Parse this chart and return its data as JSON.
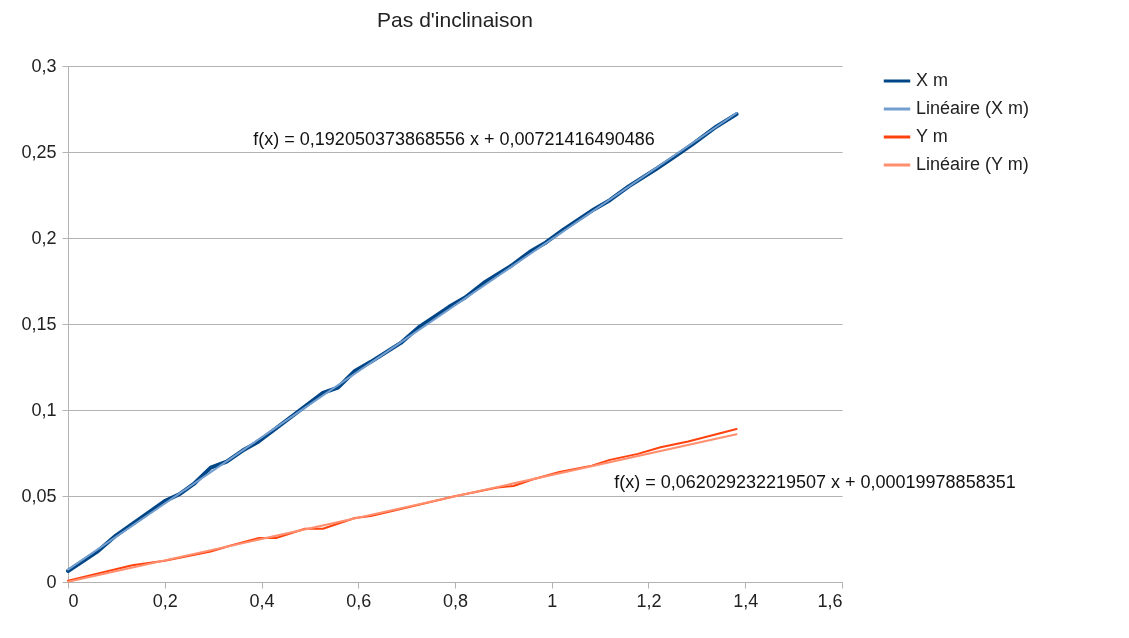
{
  "chart_data": {
    "type": "line",
    "title": "Pas d'inclinaison",
    "x": [
      0,
      0.062,
      0.099,
      0.2,
      0.23,
      0.26,
      0.295,
      0.328,
      0.361,
      0.394,
      0.527,
      0.558,
      0.593,
      0.626,
      0.688,
      0.727,
      0.788,
      0.821,
      0.86,
      0.917,
      0.955,
      0.988,
      1.025,
      1.087,
      1.12,
      1.159,
      1.215,
      1.254,
      1.292,
      1.34,
      1.382
    ],
    "series": [
      {
        "name": "X  m",
        "color": "#004586",
        "values": [
          0.0064,
          0.018,
          0.027,
          0.047,
          0.051,
          0.057,
          0.0665,
          0.07,
          0.0764,
          0.0817,
          0.11,
          0.113,
          0.1227,
          0.128,
          0.139,
          0.1485,
          0.16,
          0.1654,
          0.174,
          0.184,
          0.192,
          0.1974,
          0.205,
          0.2166,
          0.222,
          0.23,
          0.24,
          0.2473,
          0.2547,
          0.2647,
          0.272
        ]
      },
      {
        "name": "Linéaire (X  m)",
        "color": "#729fcf",
        "x": [
          0,
          1.382
        ],
        "values": [
          0.0072,
          0.2727
        ]
      },
      {
        "name": "Y m",
        "color": "#ff420e",
        "x": [
          0,
          0.133,
          0.2,
          0.295,
          0.333,
          0.395,
          0.43,
          0.49,
          0.527,
          0.593,
          0.626,
          0.797,
          0.888,
          0.921,
          0.96,
          1.016,
          1.083,
          1.12,
          1.178,
          1.225,
          1.282,
          1.382
        ],
        "values": [
          0.0008,
          0.0097,
          0.0123,
          0.0177,
          0.0209,
          0.0256,
          0.0256,
          0.031,
          0.031,
          0.0372,
          0.0383,
          0.0497,
          0.055,
          0.0558,
          0.0596,
          0.064,
          0.0676,
          0.071,
          0.0745,
          0.0783,
          0.0817,
          0.089
        ]
      },
      {
        "name": "Linéaire (Y m)",
        "color": "#ff8f6f",
        "x": [
          0,
          1.382
        ],
        "values": [
          0.0002,
          0.0859
        ]
      }
    ],
    "xlim": [
      0,
      1.6
    ],
    "xticks": [
      0,
      {
        "value": 0.2,
        "label": "0,2"
      },
      {
        "value": 0.4,
        "label": "0,4"
      },
      {
        "value": 0.6,
        "label": "0,6"
      },
      {
        "value": 0.8,
        "label": "0,8"
      },
      1,
      {
        "value": 1.2,
        "label": "1,2"
      },
      {
        "value": 1.4,
        "label": "1,4"
      },
      {
        "value": 1.6,
        "label": "1,6"
      }
    ],
    "ylim": [
      0,
      0.3
    ],
    "yticks": [
      0,
      {
        "value": 0.05,
        "label": "0,05"
      },
      {
        "value": 0.1,
        "label": "0,1"
      },
      {
        "value": 0.15,
        "label": "0,15"
      },
      {
        "value": 0.2,
        "label": "0,2"
      },
      {
        "value": 0.25,
        "label": "0,25"
      },
      {
        "value": 0.3,
        "label": "0,3"
      }
    ],
    "grid": "y",
    "legend": "right",
    "annotations": [
      "f(x) = 0,192050373868556 x + 0,00721416490486",
      "f(x) = 0,062029232219507 x + 0,00019978858351"
    ]
  }
}
